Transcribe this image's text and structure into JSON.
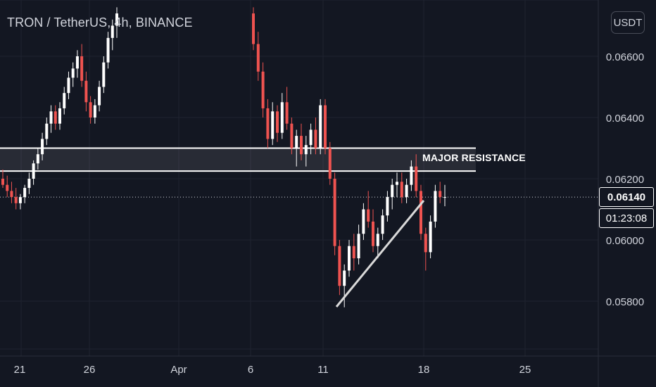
{
  "header": {
    "title": "TRON / TetherUS, 4h, BINANCE",
    "currency_button": "USDT"
  },
  "price": {
    "current": "0.06140",
    "countdown": "01:23:08"
  },
  "annotation": {
    "label": "MAJOR RESISTANCE"
  },
  "colors": {
    "background": "#131722",
    "up": "#ffffff",
    "down": "#ef5350",
    "grid": "#1f2330",
    "axis_text": "#d1d4dc"
  },
  "chart_data": {
    "type": "candlestick",
    "symbol": "TRON / TetherUS",
    "timeframe": "4h",
    "exchange": "BINANCE",
    "y_axis_ticks": [
      "0.06600",
      "0.06400",
      "0.06200",
      "0.06000",
      "0.05800"
    ],
    "y_axis_tick_values": [
      0.066,
      0.064,
      0.062,
      0.06,
      0.058
    ],
    "x_axis_ticks": [
      "21",
      "26",
      "Apr",
      "6",
      "11",
      "18",
      "25"
    ],
    "last_price": 0.0614,
    "resistance_zone": {
      "low": 0.06225,
      "high": 0.063,
      "label": "MAJOR RESISTANCE"
    },
    "trendline": {
      "from": {
        "date": "Apr 11",
        "price": 0.0578
      },
      "to": {
        "date": "Apr 18",
        "price": 0.0612
      }
    },
    "candles_ohlc": [
      [
        0.062,
        0.0623,
        0.0617,
        0.0618
      ],
      [
        0.0618,
        0.0621,
        0.0614,
        0.0616
      ],
      [
        0.0616,
        0.0619,
        0.0612,
        0.0614
      ],
      [
        0.0614,
        0.0617,
        0.061,
        0.0612
      ],
      [
        0.0612,
        0.0615,
        0.061,
        0.0614
      ],
      [
        0.0614,
        0.0618,
        0.0612,
        0.0617
      ],
      [
        0.0617,
        0.0622,
        0.0615,
        0.062
      ],
      [
        0.062,
        0.0626,
        0.0618,
        0.0625
      ],
      [
        0.0625,
        0.063,
        0.0623,
        0.0628
      ],
      [
        0.0628,
        0.0635,
        0.0626,
        0.0633
      ],
      [
        0.0633,
        0.064,
        0.0631,
        0.0638
      ],
      [
        0.0638,
        0.0644,
        0.0635,
        0.0642
      ],
      [
        0.0642,
        0.0644,
        0.0636,
        0.0638
      ],
      [
        0.0638,
        0.0645,
        0.0636,
        0.0643
      ],
      [
        0.0643,
        0.065,
        0.0641,
        0.0648
      ],
      [
        0.0648,
        0.0655,
        0.0646,
        0.0653
      ],
      [
        0.0653,
        0.0658,
        0.065,
        0.0656
      ],
      [
        0.0656,
        0.0662,
        0.0653,
        0.066
      ],
      [
        0.066,
        0.0664,
        0.065,
        0.0652
      ],
      [
        0.0652,
        0.0655,
        0.0642,
        0.0645
      ],
      [
        0.0645,
        0.0647,
        0.0638,
        0.064
      ],
      [
        0.064,
        0.0646,
        0.0638,
        0.0644
      ],
      [
        0.0644,
        0.0652,
        0.0642,
        0.065
      ],
      [
        0.065,
        0.066,
        0.0648,
        0.0658
      ],
      [
        0.0658,
        0.0668,
        0.0656,
        0.0666
      ],
      [
        0.0666,
        0.0672,
        0.0662,
        0.067
      ],
      [
        0.067,
        0.0676,
        0.0666,
        0.0674
      ],
      [
        0.0674,
        0.0676,
        0.0662,
        0.0664
      ],
      [
        0.0664,
        0.0668,
        0.0652,
        0.0655
      ],
      [
        0.0655,
        0.0658,
        0.064,
        0.0643
      ],
      [
        0.0643,
        0.0646,
        0.063,
        0.0633
      ],
      [
        0.0633,
        0.0645,
        0.0631,
        0.0642
      ],
      [
        0.0642,
        0.0644,
        0.0632,
        0.0635
      ],
      [
        0.0635,
        0.0648,
        0.0633,
        0.0645
      ],
      [
        0.0645,
        0.065,
        0.0636,
        0.0638
      ],
      [
        0.0638,
        0.064,
        0.0628,
        0.063
      ],
      [
        0.063,
        0.0636,
        0.0624,
        0.0634
      ],
      [
        0.0634,
        0.0638,
        0.0626,
        0.0628
      ],
      [
        0.0628,
        0.0634,
        0.0624,
        0.0631
      ],
      [
        0.0631,
        0.0638,
        0.0628,
        0.0636
      ],
      [
        0.0636,
        0.064,
        0.0628,
        0.063
      ],
      [
        0.063,
        0.0646,
        0.0628,
        0.0644
      ],
      [
        0.0644,
        0.0646,
        0.0628,
        0.063
      ],
      [
        0.063,
        0.0632,
        0.0618,
        0.062
      ],
      [
        0.062,
        0.0622,
        0.0595,
        0.0598
      ],
      [
        0.0598,
        0.06,
        0.0582,
        0.0585
      ],
      [
        0.0585,
        0.0592,
        0.0578,
        0.059
      ],
      [
        0.059,
        0.06,
        0.0588,
        0.0598
      ],
      [
        0.0598,
        0.0602,
        0.059,
        0.0594
      ],
      [
        0.0594,
        0.0605,
        0.0592,
        0.0602
      ],
      [
        0.0602,
        0.0612,
        0.06,
        0.061
      ],
      [
        0.061,
        0.0616,
        0.0604,
        0.0606
      ],
      [
        0.0606,
        0.061,
        0.0596,
        0.0598
      ],
      [
        0.0598,
        0.0604,
        0.0594,
        0.0602
      ],
      [
        0.0602,
        0.061,
        0.06,
        0.0608
      ],
      [
        0.0608,
        0.0616,
        0.0606,
        0.0614
      ],
      [
        0.0614,
        0.062,
        0.061,
        0.0618
      ],
      [
        0.0618,
        0.0622,
        0.0614,
        0.0619
      ],
      [
        0.0619,
        0.0622,
        0.0612,
        0.0614
      ],
      [
        0.0614,
        0.062,
        0.0612,
        0.0618
      ],
      [
        0.0618,
        0.0626,
        0.0616,
        0.0624
      ],
      [
        0.0624,
        0.0628,
        0.0614,
        0.0616
      ],
      [
        0.0616,
        0.0618,
        0.06,
        0.0602
      ],
      [
        0.0602,
        0.0604,
        0.059,
        0.0596
      ],
      [
        0.0596,
        0.0608,
        0.0594,
        0.0606
      ],
      [
        0.0606,
        0.0618,
        0.0604,
        0.0616
      ],
      [
        0.0616,
        0.0619,
        0.0612,
        0.0614
      ],
      [
        0.0614,
        0.0618,
        0.0611,
        0.0614
      ]
    ]
  }
}
